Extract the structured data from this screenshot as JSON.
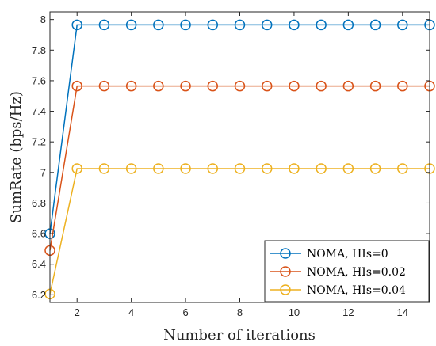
{
  "chart_data": {
    "type": "line",
    "xlabel": "Number of iterations",
    "ylabel": "SumRate (bps/Hz)",
    "xlim": [
      1,
      15
    ],
    "ylim": [
      6.15,
      8.05
    ],
    "xticks": [
      2,
      4,
      6,
      8,
      10,
      12,
      14
    ],
    "yticks": [
      6.2,
      6.4,
      6.6,
      6.8,
      7,
      7.2,
      7.4,
      7.6,
      7.8,
      8
    ],
    "xtick_labels": [
      "2",
      "4",
      "6",
      "8",
      "10",
      "12",
      "14"
    ],
    "ytick_labels": [
      "6.2",
      "6.4",
      "6.6",
      "6.8",
      "7",
      "7.2",
      "7.4",
      "7.6",
      "7.8",
      "8"
    ],
    "grid": false,
    "legend_position": "bottom-right",
    "x": [
      1,
      2,
      3,
      4,
      5,
      6,
      7,
      8,
      9,
      10,
      11,
      12,
      13,
      14,
      15
    ],
    "series": [
      {
        "name": "NOMA, HIs=0",
        "color": "#0072BD",
        "marker": "circle",
        "values": [
          6.6,
          7.965,
          7.965,
          7.965,
          7.965,
          7.965,
          7.965,
          7.965,
          7.965,
          7.965,
          7.965,
          7.965,
          7.965,
          7.965,
          7.965
        ]
      },
      {
        "name": "NOMA, HIs=0.02",
        "color": "#D95319",
        "marker": "circle",
        "values": [
          6.49,
          7.565,
          7.565,
          7.565,
          7.565,
          7.565,
          7.565,
          7.565,
          7.565,
          7.565,
          7.565,
          7.565,
          7.565,
          7.565,
          7.565
        ]
      },
      {
        "name": "NOMA, HIs=0.04",
        "color": "#EDB120",
        "marker": "circle",
        "values": [
          6.205,
          7.025,
          7.025,
          7.025,
          7.025,
          7.025,
          7.025,
          7.025,
          7.025,
          7.025,
          7.025,
          7.025,
          7.025,
          7.025,
          7.025
        ]
      }
    ]
  }
}
